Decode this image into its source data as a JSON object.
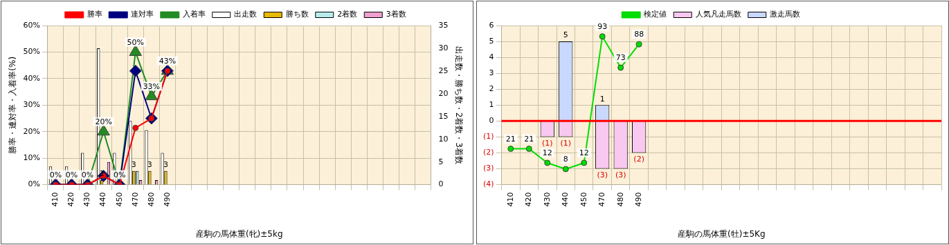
{
  "chart_data": [
    {
      "type": "bar",
      "xlabel": "産駒の馬体重(牝)±5kg",
      "ylabel": "勝率・連対率・入着率(%)",
      "y2label": "出走数・勝ち数・2着数・3着数",
      "categories": [
        "410",
        "420",
        "430",
        "440",
        "450",
        "470",
        "480",
        "490",
        null,
        null,
        null,
        null,
        null,
        null,
        null,
        null,
        null,
        null,
        null,
        null,
        null,
        null,
        null,
        null
      ],
      "series": [
        {
          "name": "出走数",
          "color": "#ffffff",
          "axis": "y2",
          "values": [
            4,
            4,
            7,
            30,
            7,
            14,
            12,
            7,
            null,
            null,
            null,
            null,
            null,
            null,
            null,
            null,
            null,
            null,
            null,
            null,
            null,
            null,
            null,
            null
          ]
        },
        {
          "name": "勝ち数",
          "color": "#e8b800",
          "axis": "y2",
          "values": [
            0,
            0,
            0,
            1,
            0,
            3,
            3,
            3,
            null,
            null,
            null,
            null,
            null,
            null,
            null,
            null,
            null,
            null,
            null,
            null,
            null,
            null,
            null,
            null
          ],
          "value_labels": [
            null,
            null,
            null,
            "1",
            null,
            "3",
            "3",
            "3",
            null,
            null,
            null,
            null,
            null,
            null,
            null,
            null,
            null,
            null,
            null,
            null,
            null,
            null,
            null,
            null
          ]
        },
        {
          "name": "2着数",
          "color": "#b8ecec",
          "axis": "y2",
          "values": [
            0,
            0,
            0,
            0,
            0,
            3,
            0,
            0,
            null,
            null,
            null,
            null,
            null,
            null,
            null,
            null,
            null,
            null,
            null,
            null,
            null,
            null,
            null,
            null
          ]
        },
        {
          "name": "3着数",
          "color": "#f0a0d0",
          "axis": "y2",
          "values": [
            0,
            0,
            0,
            5,
            0,
            1,
            1,
            0,
            null,
            null,
            null,
            null,
            null,
            null,
            null,
            null,
            null,
            null,
            null,
            null,
            null,
            null,
            null,
            null
          ]
        },
        {
          "name": "入着率",
          "type": "line",
          "color": "#228b22",
          "marker": "triangle",
          "values": [
            0,
            0,
            0,
            20,
            0,
            50,
            33.3,
            42.9,
            null,
            null,
            null,
            null,
            null,
            null,
            null,
            null,
            null,
            null,
            null,
            null,
            null,
            null,
            null,
            null
          ],
          "value_labels": [
            "0%",
            "0%",
            "0%",
            "20%",
            "0%",
            "50%",
            "33%",
            "43%",
            null,
            null,
            null,
            null,
            null,
            null,
            null,
            null,
            null,
            null,
            null,
            null,
            null,
            null,
            null,
            null
          ]
        },
        {
          "name": "連対率",
          "type": "line",
          "color": "#000080",
          "marker": "diamond",
          "values": [
            0,
            0,
            0,
            3.3,
            0,
            42.9,
            25,
            42.9,
            null,
            null,
            null,
            null,
            null,
            null,
            null,
            null,
            null,
            null,
            null,
            null,
            null,
            null,
            null,
            null
          ]
        },
        {
          "name": "勝率",
          "type": "line",
          "color": "#ff0000",
          "marker": "circle",
          "values": [
            0,
            0,
            0,
            3.3,
            0,
            21.4,
            25,
            42.9,
            null,
            null,
            null,
            null,
            null,
            null,
            null,
            null,
            null,
            null,
            null,
            null,
            null,
            null,
            null,
            null
          ]
        }
      ],
      "ylim": [
        0,
        60
      ],
      "yticks": [
        {
          "value": 0,
          "label": "0%"
        },
        {
          "value": 10,
          "label": "10%"
        },
        {
          "value": 20,
          "label": "20%"
        },
        {
          "value": 30,
          "label": "30%"
        },
        {
          "value": 40,
          "label": "40%"
        },
        {
          "value": 50,
          "label": "50%"
        },
        {
          "value": 60,
          "label": "60%"
        }
      ],
      "y2lim": [
        0,
        35
      ],
      "y2ticks": [
        0,
        5,
        10,
        15,
        20,
        25,
        30,
        35
      ],
      "grid": true,
      "legend": "top"
    },
    {
      "type": "bar",
      "xlabel": "産駒の馬体重(牡)±5Kg",
      "stacked": true,
      "categories": [
        "410",
        "420",
        "430",
        "440",
        "450",
        "470",
        "480",
        "490",
        null,
        null,
        null,
        null,
        null,
        null,
        null,
        null,
        null,
        null,
        null,
        null,
        null,
        null,
        null,
        null
      ],
      "series": [
        {
          "name": "人気凡走馬数",
          "color": "#f8c8f0",
          "values": [
            0,
            0,
            -1,
            -1,
            0,
            -3,
            -3,
            -2,
            null,
            null,
            null,
            null,
            null,
            null,
            null,
            null,
            null,
            null,
            null,
            null,
            null,
            null,
            null,
            null
          ],
          "value_labels": [
            null,
            null,
            "(1)",
            "(1)",
            null,
            "(3)",
            "(3)",
            "(2)",
            null,
            null,
            null,
            null,
            null,
            null,
            null,
            null,
            null,
            null,
            null,
            null,
            null,
            null,
            null,
            null
          ]
        },
        {
          "name": "激走馬数",
          "color": "#c8d8ff",
          "values": [
            0,
            0,
            0,
            5,
            0,
            1,
            0,
            0,
            null,
            null,
            null,
            null,
            null,
            null,
            null,
            null,
            null,
            null,
            null,
            null,
            null,
            null,
            null,
            null
          ],
          "value_labels": [
            null,
            null,
            null,
            "5",
            null,
            "1",
            null,
            null,
            null,
            null,
            null,
            null,
            null,
            null,
            null,
            null,
            null,
            null,
            null,
            null,
            null,
            null,
            null,
            null
          ]
        },
        {
          "name": "検定値",
          "type": "line",
          "axis": "y2",
          "color": "#00dd00",
          "marker": "circle",
          "values": [
            21,
            21,
            12,
            8,
            12,
            93,
            73,
            88,
            null,
            null,
            null,
            null,
            null,
            null,
            null,
            null,
            null,
            null,
            null,
            null,
            null,
            null,
            null,
            null
          ],
          "value_labels": [
            "21",
            "21",
            "12",
            "8",
            "12",
            "93",
            "73",
            "88",
            null,
            null,
            null,
            null,
            null,
            null,
            null,
            null,
            null,
            null,
            null,
            null,
            null,
            null,
            null,
            null
          ]
        }
      ],
      "ylim": [
        -4,
        6
      ],
      "yticks": [
        {
          "value": -4,
          "label": "(4)"
        },
        {
          "value": -3,
          "label": "(3)"
        },
        {
          "value": -2,
          "label": "(2)"
        },
        {
          "value": -1,
          "label": "(1)"
        },
        0,
        1,
        2,
        3,
        4,
        5,
        6
      ],
      "y2lim": [
        -2,
        100
      ],
      "ref_lines": [
        {
          "axis": "y",
          "value": 0,
          "color": "#ff0000"
        }
      ],
      "grid": true,
      "legend": "top"
    }
  ]
}
